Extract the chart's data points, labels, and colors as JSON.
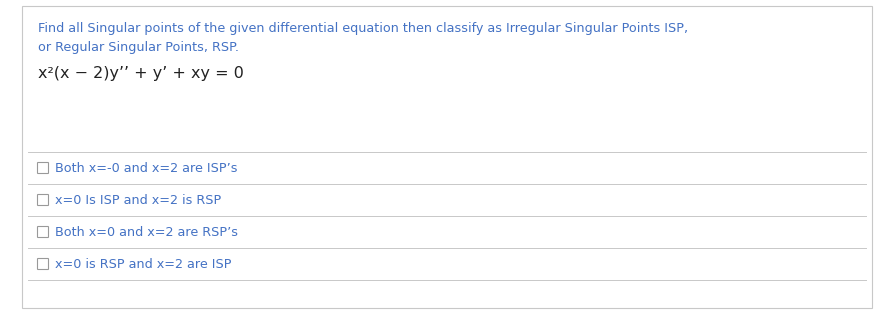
{
  "background_color": "#ffffff",
  "border_color": "#c8c8c8",
  "title_line1": "Find all Singular points of the given differential equation then classify as Irregular Singular Points ISP,",
  "title_line2": "or Regular Singular Points, RSP.",
  "title_color": "#4472c4",
  "title_fontsize": 9.2,
  "equation_color": "#222222",
  "equation_fontsize": 11.5,
  "options": [
    "Both x=-0 and x=2 are ISP’s",
    "x=0 Is ISP and x=2 is RSP",
    "Both x=0 and x=2 are RSP’s",
    "x=0 is RSP and x=2 are ISP"
  ],
  "option_color": "#4472c4",
  "option_fontsize": 9.2,
  "separator_color": "#c8c8c8",
  "checkbox_color": "#999999",
  "fig_width": 8.93,
  "fig_height": 3.14,
  "dpi": 100
}
